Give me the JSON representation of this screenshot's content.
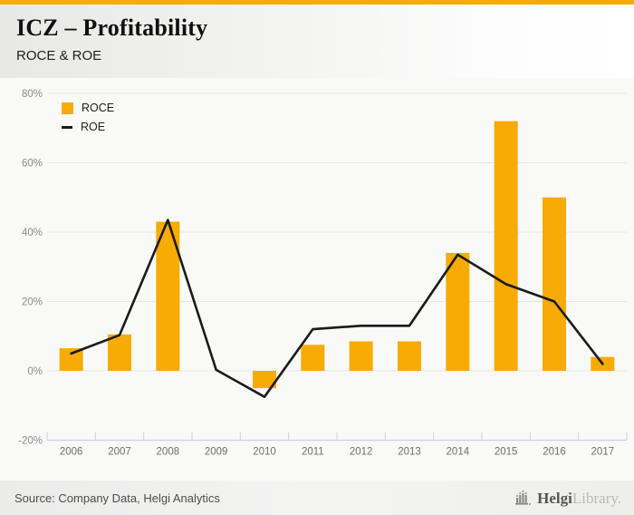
{
  "colors": {
    "accent": "#F5AC00",
    "bar": "#F7AB04",
    "line": "#1a1a1a",
    "gridline": "#e6e6e4",
    "axis": "#ccd2dd",
    "y_tick_label": "#8b8b8b",
    "x_tick_label": "#6e6e6e"
  },
  "header": {
    "title": "ICZ – Profitability",
    "subtitle": "ROCE & ROE"
  },
  "chart_data": {
    "type": "bar",
    "categories": [
      "2006",
      "2007",
      "2008",
      "2009",
      "2010",
      "2011",
      "2012",
      "2013",
      "2014",
      "2015",
      "2016",
      "2017"
    ],
    "series": [
      {
        "name": "ROCE",
        "type": "bar",
        "color": "#F7AB04",
        "values": [
          6.5,
          10.5,
          43,
          0,
          -5,
          7.5,
          8.5,
          8.5,
          34,
          72,
          50,
          4
        ]
      },
      {
        "name": "ROE",
        "type": "line",
        "color": "#1a1a1a",
        "values": [
          5,
          10.3,
          43.5,
          0.3,
          -7.5,
          12,
          13,
          13,
          33.5,
          25,
          20,
          2
        ]
      }
    ],
    "title": "ICZ – Profitability",
    "subtitle": "ROCE & ROE",
    "xlabel": "",
    "ylabel": "",
    "ylim": [
      -20,
      80
    ],
    "ytick_step": 20,
    "ytick_suffix": "%",
    "grid": true,
    "legend_position": "top-left"
  },
  "footer": {
    "source": "Source: Company Data, Helgi Analytics",
    "logo_primary": "Helgi",
    "logo_secondary": "Library."
  }
}
